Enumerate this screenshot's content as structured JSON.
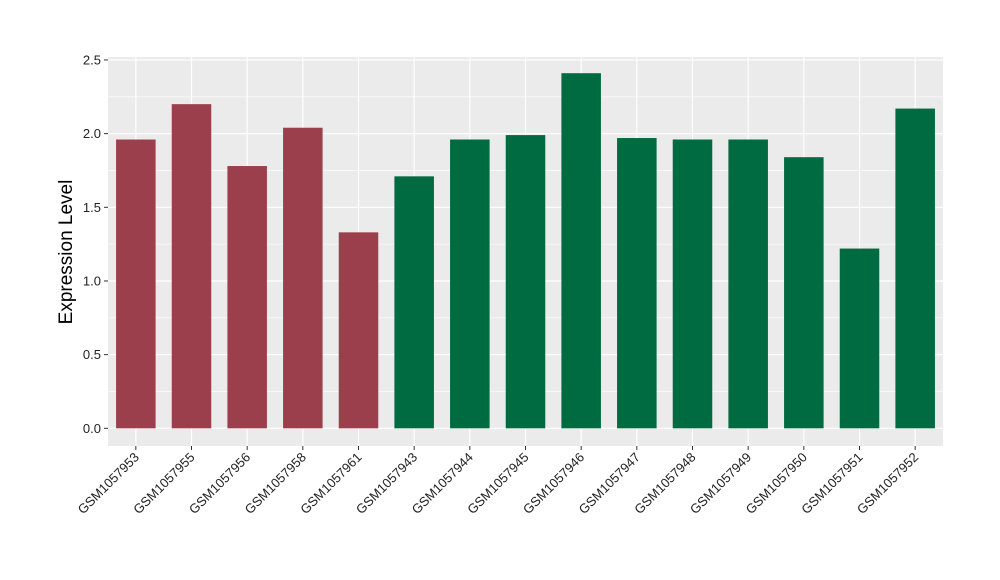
{
  "chart_data": {
    "type": "bar",
    "title": "",
    "xlabel": "",
    "ylabel": "Expression Level",
    "ylim": [
      -0.12,
      2.52
    ],
    "yticks": [
      "0.0",
      "0.5",
      "1.0",
      "1.5",
      "2.0",
      "2.5"
    ],
    "grid": true,
    "legend": "none",
    "categories": [
      "GSM1057953",
      "GSM1057955",
      "GSM1057956",
      "GSM1057958",
      "GSM1057961",
      "GSM1057943",
      "GSM1057944",
      "GSM1057945",
      "GSM1057946",
      "GSM1057947",
      "GSM1057948",
      "GSM1057949",
      "GSM1057950",
      "GSM1057951",
      "GSM1057952"
    ],
    "values": [
      1.96,
      2.2,
      1.78,
      2.04,
      1.33,
      1.71,
      1.96,
      1.99,
      2.41,
      1.97,
      1.96,
      1.96,
      1.84,
      1.22,
      2.17
    ],
    "colors": [
      "#9b3f4d",
      "#9b3f4d",
      "#9b3f4d",
      "#9b3f4d",
      "#9b3f4d",
      "#006a40",
      "#006a40",
      "#006a40",
      "#006a40",
      "#006a40",
      "#006a40",
      "#006a40",
      "#006a40",
      "#006a40",
      "#006a40"
    ],
    "panel_color": "#ebebeb",
    "grid_color": "#ffffff"
  }
}
